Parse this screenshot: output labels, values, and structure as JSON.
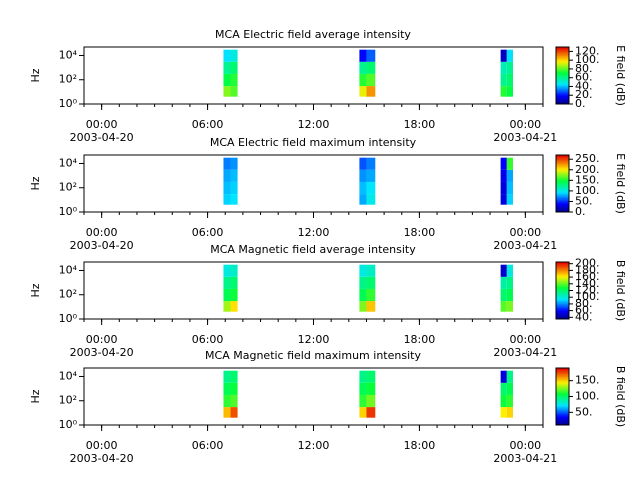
{
  "chart_data": [
    {
      "type": "heatmap",
      "title": "MCA  Electric field average intensity",
      "ylabel": "Hz",
      "zlabel": "E field (dB)",
      "yscale": "log",
      "xlim": [
        -1,
        25
      ],
      "xticks": [
        {
          "value": 0,
          "label": "00:00"
        },
        {
          "value": 6,
          "label": "06:00"
        },
        {
          "value": 12,
          "label": "12:00"
        },
        {
          "value": 18,
          "label": "18:00"
        },
        {
          "value": 24,
          "label": "00:00"
        }
      ],
      "date_labels": [
        {
          "value": 0,
          "label": "2003-04-20"
        },
        {
          "value": 24,
          "label": "2003-04-21"
        }
      ],
      "ylim": [
        1,
        50000
      ],
      "yticks": [
        {
          "value": 1,
          "label": "10⁰"
        },
        {
          "value": 100,
          "label": "10²"
        },
        {
          "value": 10000,
          "label": "10⁴"
        }
      ],
      "zlim": [
        0,
        130
      ],
      "zticks": [
        {
          "value": 0,
          "label": "0."
        },
        {
          "value": 20,
          "label": "20."
        },
        {
          "value": 40,
          "label": "40."
        },
        {
          "value": 60,
          "label": "60."
        },
        {
          "value": 80,
          "label": "80."
        },
        {
          "value": 100,
          "label": "100."
        },
        {
          "value": 120,
          "label": "120."
        }
      ],
      "time_bins": [
        [
          6.9,
          7.3
        ],
        [
          7.3,
          7.7
        ],
        [
          14.6,
          15.0
        ],
        [
          15.0,
          15.5
        ],
        [
          22.6,
          22.95
        ],
        [
          22.95,
          23.3
        ]
      ],
      "freq_bins": [
        4,
        30,
        300,
        3000,
        30000
      ],
      "values": [
        [
          85,
          70,
          60,
          45
        ],
        [
          80,
          75,
          65,
          50
        ],
        [
          95,
          75,
          60,
          20
        ],
        [
          110,
          80,
          65,
          30
        ],
        [
          75,
          60,
          55,
          10
        ],
        [
          70,
          65,
          60,
          45
        ]
      ]
    },
    {
      "type": "heatmap",
      "title": "MCA  Electric field maximum intensity",
      "ylabel": "Hz",
      "zlabel": "E field (dB)",
      "yscale": "log",
      "xlim": [
        -1,
        25
      ],
      "xticks": [
        {
          "value": 0,
          "label": "00:00"
        },
        {
          "value": 6,
          "label": "06:00"
        },
        {
          "value": 12,
          "label": "12:00"
        },
        {
          "value": 18,
          "label": "18:00"
        },
        {
          "value": 24,
          "label": "00:00"
        }
      ],
      "date_labels": [
        {
          "value": 0,
          "label": "2003-04-20"
        },
        {
          "value": 24,
          "label": "2003-04-21"
        }
      ],
      "ylim": [
        1,
        50000
      ],
      "yticks": [
        {
          "value": 1,
          "label": "10⁰"
        },
        {
          "value": 100,
          "label": "10²"
        },
        {
          "value": 10000,
          "label": "10⁴"
        }
      ],
      "zlim": [
        0,
        270
      ],
      "zticks": [
        {
          "value": 0,
          "label": "0."
        },
        {
          "value": 50,
          "label": "50."
        },
        {
          "value": 100,
          "label": "100."
        },
        {
          "value": 150,
          "label": "150."
        },
        {
          "value": 200,
          "label": "200."
        },
        {
          "value": 250,
          "label": "250."
        }
      ],
      "time_bins": [
        [
          6.9,
          7.3
        ],
        [
          7.3,
          7.7
        ],
        [
          14.6,
          15.0
        ],
        [
          15.0,
          15.5
        ],
        [
          22.6,
          22.95
        ],
        [
          22.95,
          23.3
        ]
      ],
      "freq_bins": [
        4,
        30,
        300,
        3000,
        30000
      ],
      "values": [
        [
          90,
          85,
          80,
          70
        ],
        [
          95,
          90,
          85,
          75
        ],
        [
          80,
          85,
          75,
          60
        ],
        [
          100,
          95,
          80,
          70
        ],
        [
          30,
          30,
          35,
          40
        ],
        [
          90,
          85,
          80,
          160
        ]
      ]
    },
    {
      "type": "heatmap",
      "title": "MCA  Magnetic field average intensity",
      "ylabel": "Hz",
      "zlabel": "B field (dB)",
      "yscale": "log",
      "xlim": [
        -1,
        25
      ],
      "xticks": [
        {
          "value": 0,
          "label": "00:00"
        },
        {
          "value": 6,
          "label": "06:00"
        },
        {
          "value": 12,
          "label": "12:00"
        },
        {
          "value": 18,
          "label": "18:00"
        },
        {
          "value": 24,
          "label": "00:00"
        }
      ],
      "date_labels": [
        {
          "value": 0,
          "label": "2003-04-20"
        },
        {
          "value": 24,
          "label": "2003-04-21"
        }
      ],
      "ylim": [
        1,
        50000
      ],
      "yticks": [
        {
          "value": 1,
          "label": "10⁰"
        },
        {
          "value": 100,
          "label": "10²"
        },
        {
          "value": 10000,
          "label": "10⁴"
        }
      ],
      "zlim": [
        35,
        205
      ],
      "zticks": [
        {
          "value": 40,
          "label": "40."
        },
        {
          "value": 60,
          "label": "60."
        },
        {
          "value": 80,
          "label": "80."
        },
        {
          "value": 100,
          "label": "100."
        },
        {
          "value": 120,
          "label": "120."
        },
        {
          "value": 140,
          "label": "140."
        },
        {
          "value": 160,
          "label": "160."
        },
        {
          "value": 180,
          "label": "180."
        },
        {
          "value": 200,
          "label": "200."
        }
      ],
      "time_bins": [
        [
          6.9,
          7.3
        ],
        [
          7.3,
          7.7
        ],
        [
          14.6,
          15.0
        ],
        [
          15.0,
          15.5
        ],
        [
          22.6,
          22.95
        ],
        [
          22.95,
          23.3
        ]
      ],
      "freq_bins": [
        4,
        30,
        300,
        3000,
        30000
      ],
      "values": [
        [
          150,
          125,
          115,
          100
        ],
        [
          165,
          130,
          120,
          105
        ],
        [
          145,
          125,
          115,
          100
        ],
        [
          170,
          135,
          120,
          105
        ],
        [
          140,
          120,
          110,
          50
        ],
        [
          145,
          125,
          115,
          100
        ]
      ]
    },
    {
      "type": "heatmap",
      "title": "MCA  Magnetic field maximum intensity",
      "ylabel": "Hz",
      "zlabel": "B field (dB)",
      "yscale": "log",
      "xlim": [
        -1,
        25
      ],
      "xticks": [
        {
          "value": 0,
          "label": "00:00"
        },
        {
          "value": 6,
          "label": "06:00"
        },
        {
          "value": 12,
          "label": "12:00"
        },
        {
          "value": 18,
          "label": "18:00"
        },
        {
          "value": 24,
          "label": "00:00"
        }
      ],
      "date_labels": [
        {
          "value": 0,
          "label": "2003-04-20"
        },
        {
          "value": 24,
          "label": "2003-04-21"
        }
      ],
      "ylim": [
        1,
        50000
      ],
      "yticks": [
        {
          "value": 1,
          "label": "10⁰"
        },
        {
          "value": 100,
          "label": "10²"
        },
        {
          "value": 10000,
          "label": "10⁴"
        }
      ],
      "zlim": [
        10,
        190
      ],
      "zticks": [
        {
          "value": 50,
          "label": "50."
        },
        {
          "value": 100,
          "label": "100."
        },
        {
          "value": 150,
          "label": "150."
        }
      ],
      "time_bins": [
        [
          6.9,
          7.3
        ],
        [
          7.3,
          7.7
        ],
        [
          14.6,
          15.0
        ],
        [
          15.0,
          15.5
        ],
        [
          22.6,
          22.95
        ],
        [
          22.95,
          23.3
        ]
      ],
      "freq_bins": [
        4,
        30,
        300,
        3000,
        30000
      ],
      "values": [
        [
          155,
          115,
          105,
          95
        ],
        [
          175,
          120,
          110,
          100
        ],
        [
          150,
          115,
          105,
          95
        ],
        [
          180,
          125,
          110,
          100
        ],
        [
          145,
          110,
          100,
          30
        ],
        [
          150,
          115,
          105,
          95
        ]
      ]
    }
  ]
}
